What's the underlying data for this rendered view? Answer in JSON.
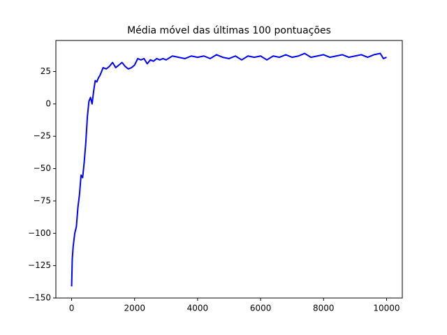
{
  "chart_data": {
    "type": "line",
    "title": "Média móvel das últimas 100 pontuações",
    "x": [
      0,
      20,
      50,
      100,
      150,
      200,
      250,
      300,
      350,
      400,
      450,
      500,
      550,
      600,
      650,
      700,
      750,
      800,
      850,
      900,
      1000,
      1100,
      1200,
      1300,
      1400,
      1500,
      1600,
      1700,
      1800,
      1900,
      2000,
      2100,
      2200,
      2300,
      2400,
      2500,
      2600,
      2700,
      2800,
      2900,
      3000,
      3200,
      3400,
      3600,
      3800,
      4000,
      4200,
      4400,
      4600,
      4800,
      5000,
      5200,
      5400,
      5600,
      5800,
      6000,
      6200,
      6400,
      6600,
      6800,
      7000,
      7200,
      7400,
      7600,
      7800,
      8000,
      8200,
      8400,
      8600,
      8800,
      9000,
      9200,
      9400,
      9600,
      9800,
      9900,
      10000
    ],
    "series": [
      {
        "color": "#0000ff",
        "values": [
          -141,
          -120,
          -110,
          -100,
          -95,
          -80,
          -70,
          -55,
          -57,
          -45,
          -30,
          -10,
          2,
          5,
          0,
          10,
          18,
          17,
          20,
          22,
          28,
          27,
          29,
          32,
          28,
          30,
          32,
          29,
          27,
          28,
          30,
          35,
          34,
          35,
          31,
          34,
          33,
          35,
          34,
          35,
          34,
          37,
          36,
          35,
          37,
          36,
          37,
          35,
          38,
          36,
          35,
          37,
          34,
          37,
          36,
          37,
          34,
          37,
          36,
          38,
          36,
          37,
          39,
          36,
          37,
          38,
          36,
          37,
          38,
          36,
          37,
          38,
          36,
          38,
          39,
          35,
          36
        ]
      }
    ],
    "xlim": [
      -500,
      10500
    ],
    "ylim": [
      -150,
      49
    ],
    "xticks": [
      0,
      2000,
      4000,
      6000,
      8000,
      10000
    ],
    "yticks": [
      {
        "value": -150,
        "label": "−150"
      },
      {
        "value": -125,
        "label": "−125"
      },
      {
        "value": -100,
        "label": "−100"
      },
      {
        "value": -75,
        "label": "−75"
      },
      {
        "value": -50,
        "label": "−50"
      },
      {
        "value": -25,
        "label": "−25"
      },
      0,
      25
    ]
  }
}
